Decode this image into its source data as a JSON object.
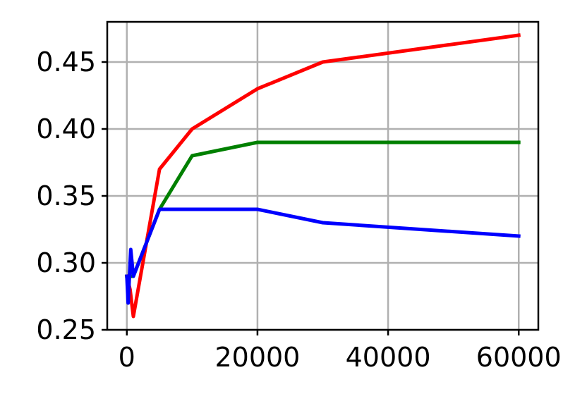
{
  "chart_data": {
    "type": "line",
    "title": "",
    "xlabel": "",
    "ylabel": "",
    "xlim": [
      -3000,
      63000
    ],
    "ylim": [
      0.25,
      0.48
    ],
    "x_ticks": [
      0,
      20000,
      40000,
      60000
    ],
    "x_tick_labels": [
      "0",
      "20000",
      "40000",
      "60000"
    ],
    "y_ticks": [
      0.25,
      0.3,
      0.35,
      0.4,
      0.45
    ],
    "y_tick_labels": [
      "0.25",
      "0.30",
      "0.35",
      "0.40",
      "0.45"
    ],
    "grid": true,
    "series": [
      {
        "color": "#ff0000",
        "points": [
          [
            0,
            0.29
          ],
          [
            500,
            0.28
          ],
          [
            1000,
            0.26
          ],
          [
            5000,
            0.37
          ],
          [
            10000,
            0.4
          ],
          [
            20000,
            0.43
          ],
          [
            30000,
            0.45
          ],
          [
            60000,
            0.47
          ]
        ]
      },
      {
        "color": "#008000",
        "points": [
          [
            0,
            0.29
          ],
          [
            1000,
            0.29
          ],
          [
            5000,
            0.34
          ],
          [
            10000,
            0.38
          ],
          [
            20000,
            0.39
          ],
          [
            30000,
            0.39
          ],
          [
            60000,
            0.39
          ]
        ]
      },
      {
        "color": "#0000ff",
        "points": [
          [
            0,
            0.29
          ],
          [
            200,
            0.27
          ],
          [
            600,
            0.31
          ],
          [
            1000,
            0.29
          ],
          [
            5000,
            0.34
          ],
          [
            10000,
            0.34
          ],
          [
            20000,
            0.34
          ],
          [
            30000,
            0.33
          ],
          [
            60000,
            0.32
          ]
        ]
      }
    ]
  }
}
